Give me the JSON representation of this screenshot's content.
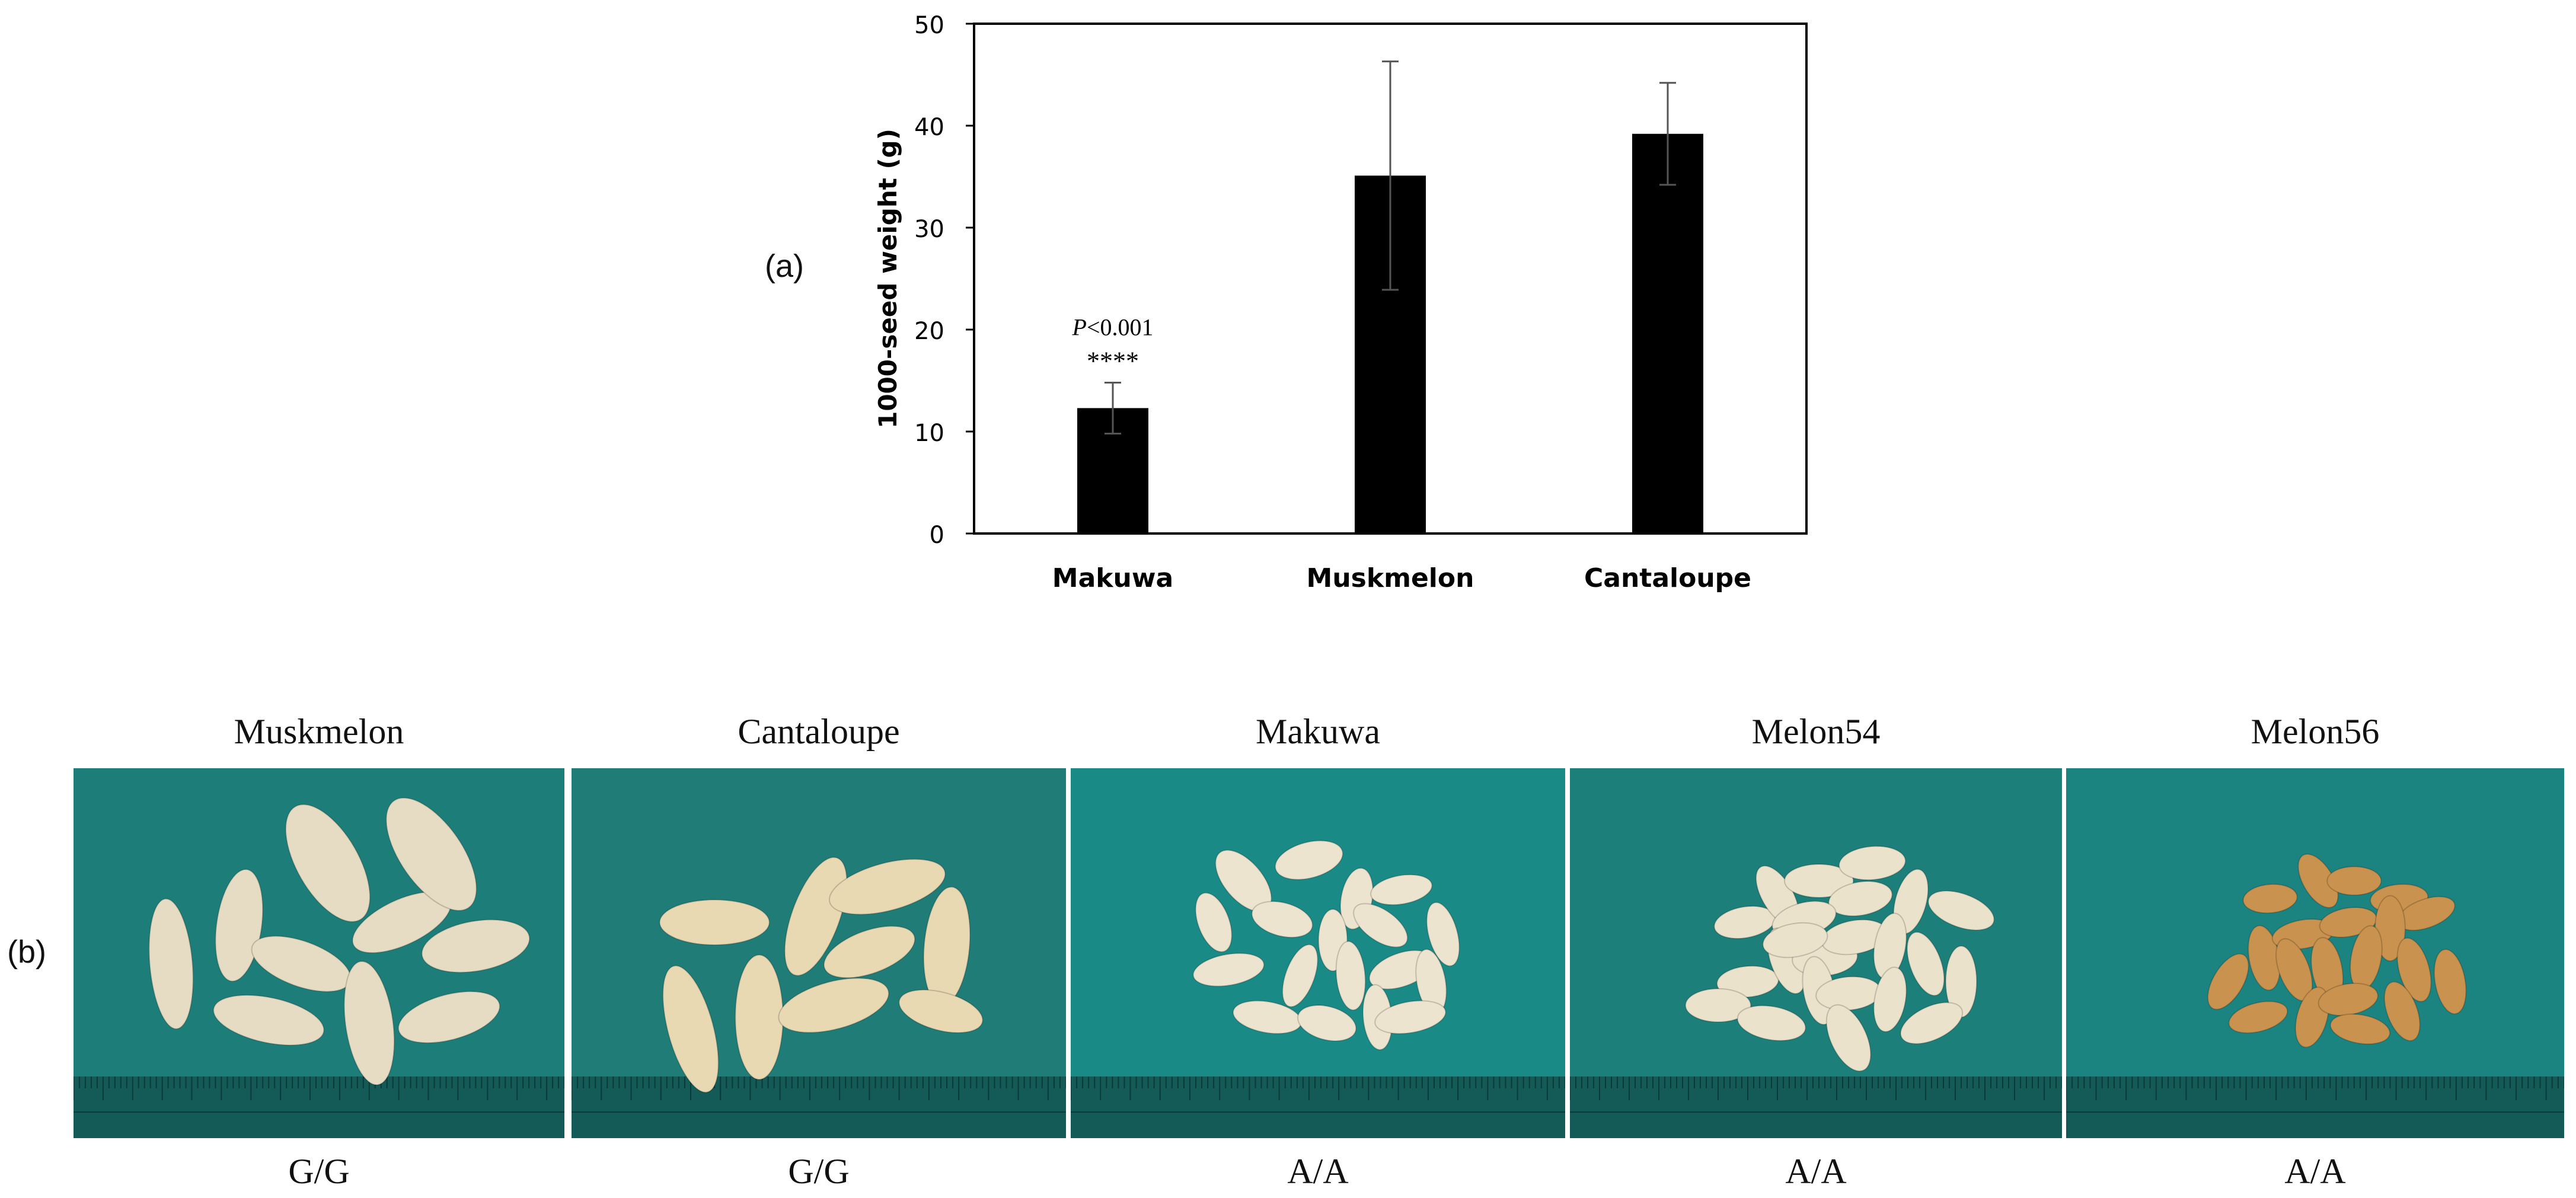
{
  "panel_labels": {
    "a": "(a)",
    "b": "(b)"
  },
  "chart_data": {
    "type": "bar",
    "categories": [
      "Makuwa",
      "Muskmelon",
      "Cantaloupe"
    ],
    "values": [
      12.3,
      35.1,
      39.2
    ],
    "error": [
      2.5,
      11.2,
      5.0
    ],
    "ylabel": "1000-seed weight (g)",
    "ylim": [
      0,
      50
    ],
    "yticks": [
      0,
      10,
      20,
      30,
      40,
      50
    ],
    "bar_color": "#000000",
    "annotation": {
      "category": "Makuwa",
      "pvalue_italic": "P",
      "pvalue_rest": "<0.001",
      "stars": "****"
    }
  },
  "seed_photos": [
    {
      "title": "Muskmelon",
      "genotype": "G/G",
      "background": "#1d7e79",
      "seed_color": "#e6dcc3",
      "seed_size": "large"
    },
    {
      "title": "Cantaloupe",
      "genotype": "G/G",
      "background": "#1f7c77",
      "seed_color": "#e8d9b3",
      "seed_size": "large"
    },
    {
      "title": "Makuwa",
      "genotype": "A/A",
      "background": "#1a8a87",
      "seed_color": "#ece4cf",
      "seed_size": "small"
    },
    {
      "title": "Melon54",
      "genotype": "A/A",
      "background": "#1d7f7a",
      "seed_color": "#ebe2cc",
      "seed_size": "small"
    },
    {
      "title": "Melon56",
      "genotype": "A/A",
      "background": "#1b8380",
      "seed_color": "#c9924e",
      "seed_size": "small"
    }
  ]
}
